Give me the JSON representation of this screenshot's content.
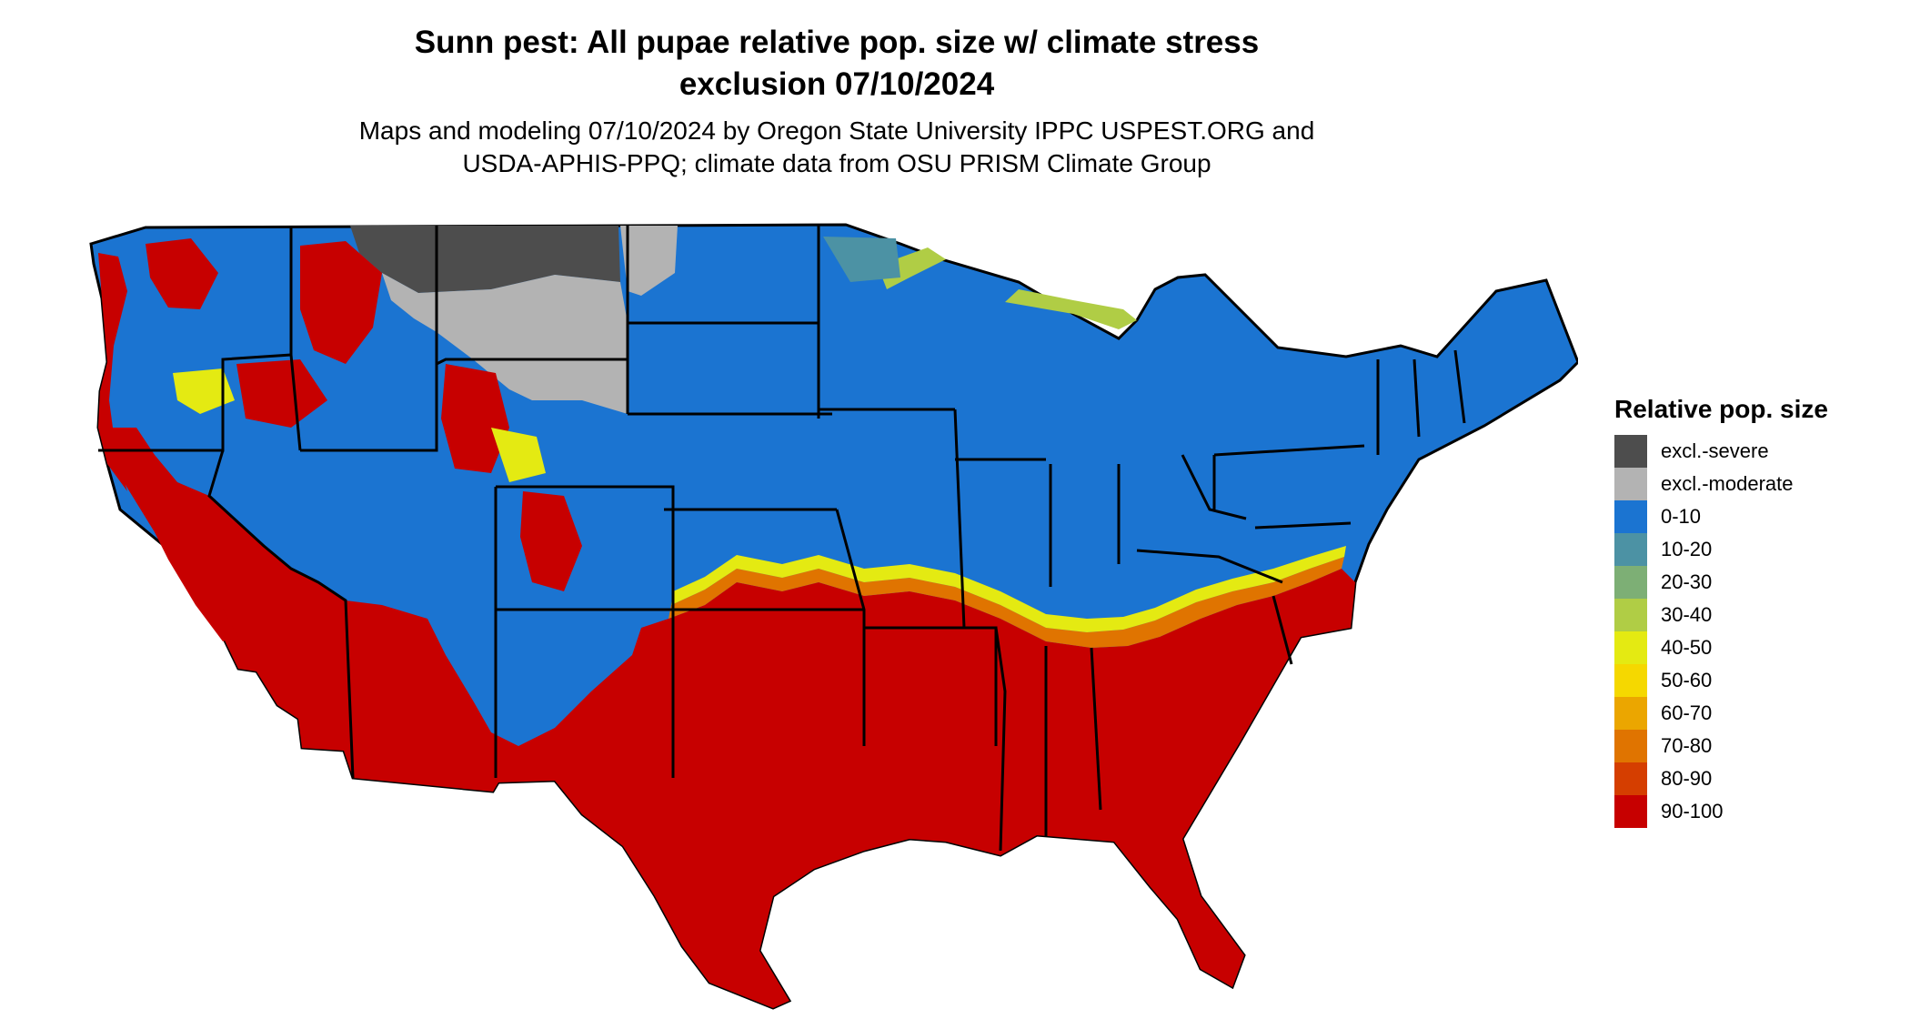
{
  "title_line1": "Sunn pest: All pupae relative pop. size w/ climate stress",
  "title_line2": "exclusion 07/10/2024",
  "subtitle_line1": "Maps and modeling 07/10/2024 by Oregon State University IPPC USPEST.ORG and",
  "subtitle_line2": "USDA-APHIS-PPQ; climate data from OSU PRISM Climate Group",
  "legend": {
    "title": "Relative pop. size",
    "items": [
      {
        "label": "excl.-severe",
        "color": "#4d4d4d"
      },
      {
        "label": "excl.-moderate",
        "color": "#b3b3b3"
      },
      {
        "label": "0-10",
        "color": "#1b74d1"
      },
      {
        "label": "10-20",
        "color": "#4c92a4"
      },
      {
        "label": "20-30",
        "color": "#7daf75"
      },
      {
        "label": "30-40",
        "color": "#b0cd45"
      },
      {
        "label": "40-50",
        "color": "#e4ea12"
      },
      {
        "label": "50-60",
        "color": "#f5d800"
      },
      {
        "label": "60-70",
        "color": "#eba600"
      },
      {
        "label": "70-80",
        "color": "#e07400"
      },
      {
        "label": "80-90",
        "color": "#d53e00"
      },
      {
        "label": "90-100",
        "color": "#c70000"
      }
    ]
  }
}
